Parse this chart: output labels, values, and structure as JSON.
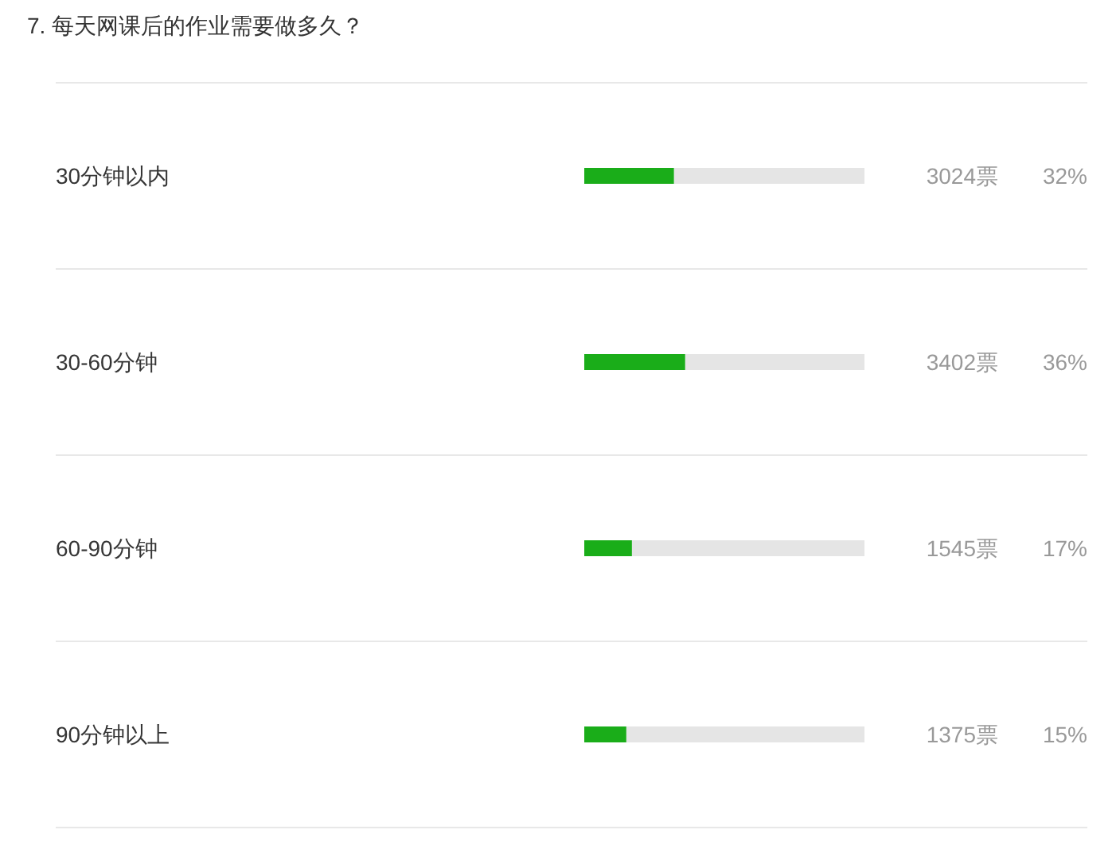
{
  "chart_data": {
    "type": "bar",
    "orientation": "horizontal",
    "title": "7. 每天网课后的作业需要做多久？",
    "categories": [
      "30分钟以内",
      "30-60分钟",
      "60-90分钟",
      "90分钟以上"
    ],
    "values": [
      32,
      36,
      17,
      15
    ],
    "color": "#1aad19",
    "xlim": [
      0,
      100
    ],
    "value_labels": [
      "32%",
      "36%",
      "17%",
      "15%"
    ],
    "annotations": [
      "3024票",
      "3402票",
      "1545票",
      "1375票"
    ],
    "tick_labels": "y"
  }
}
